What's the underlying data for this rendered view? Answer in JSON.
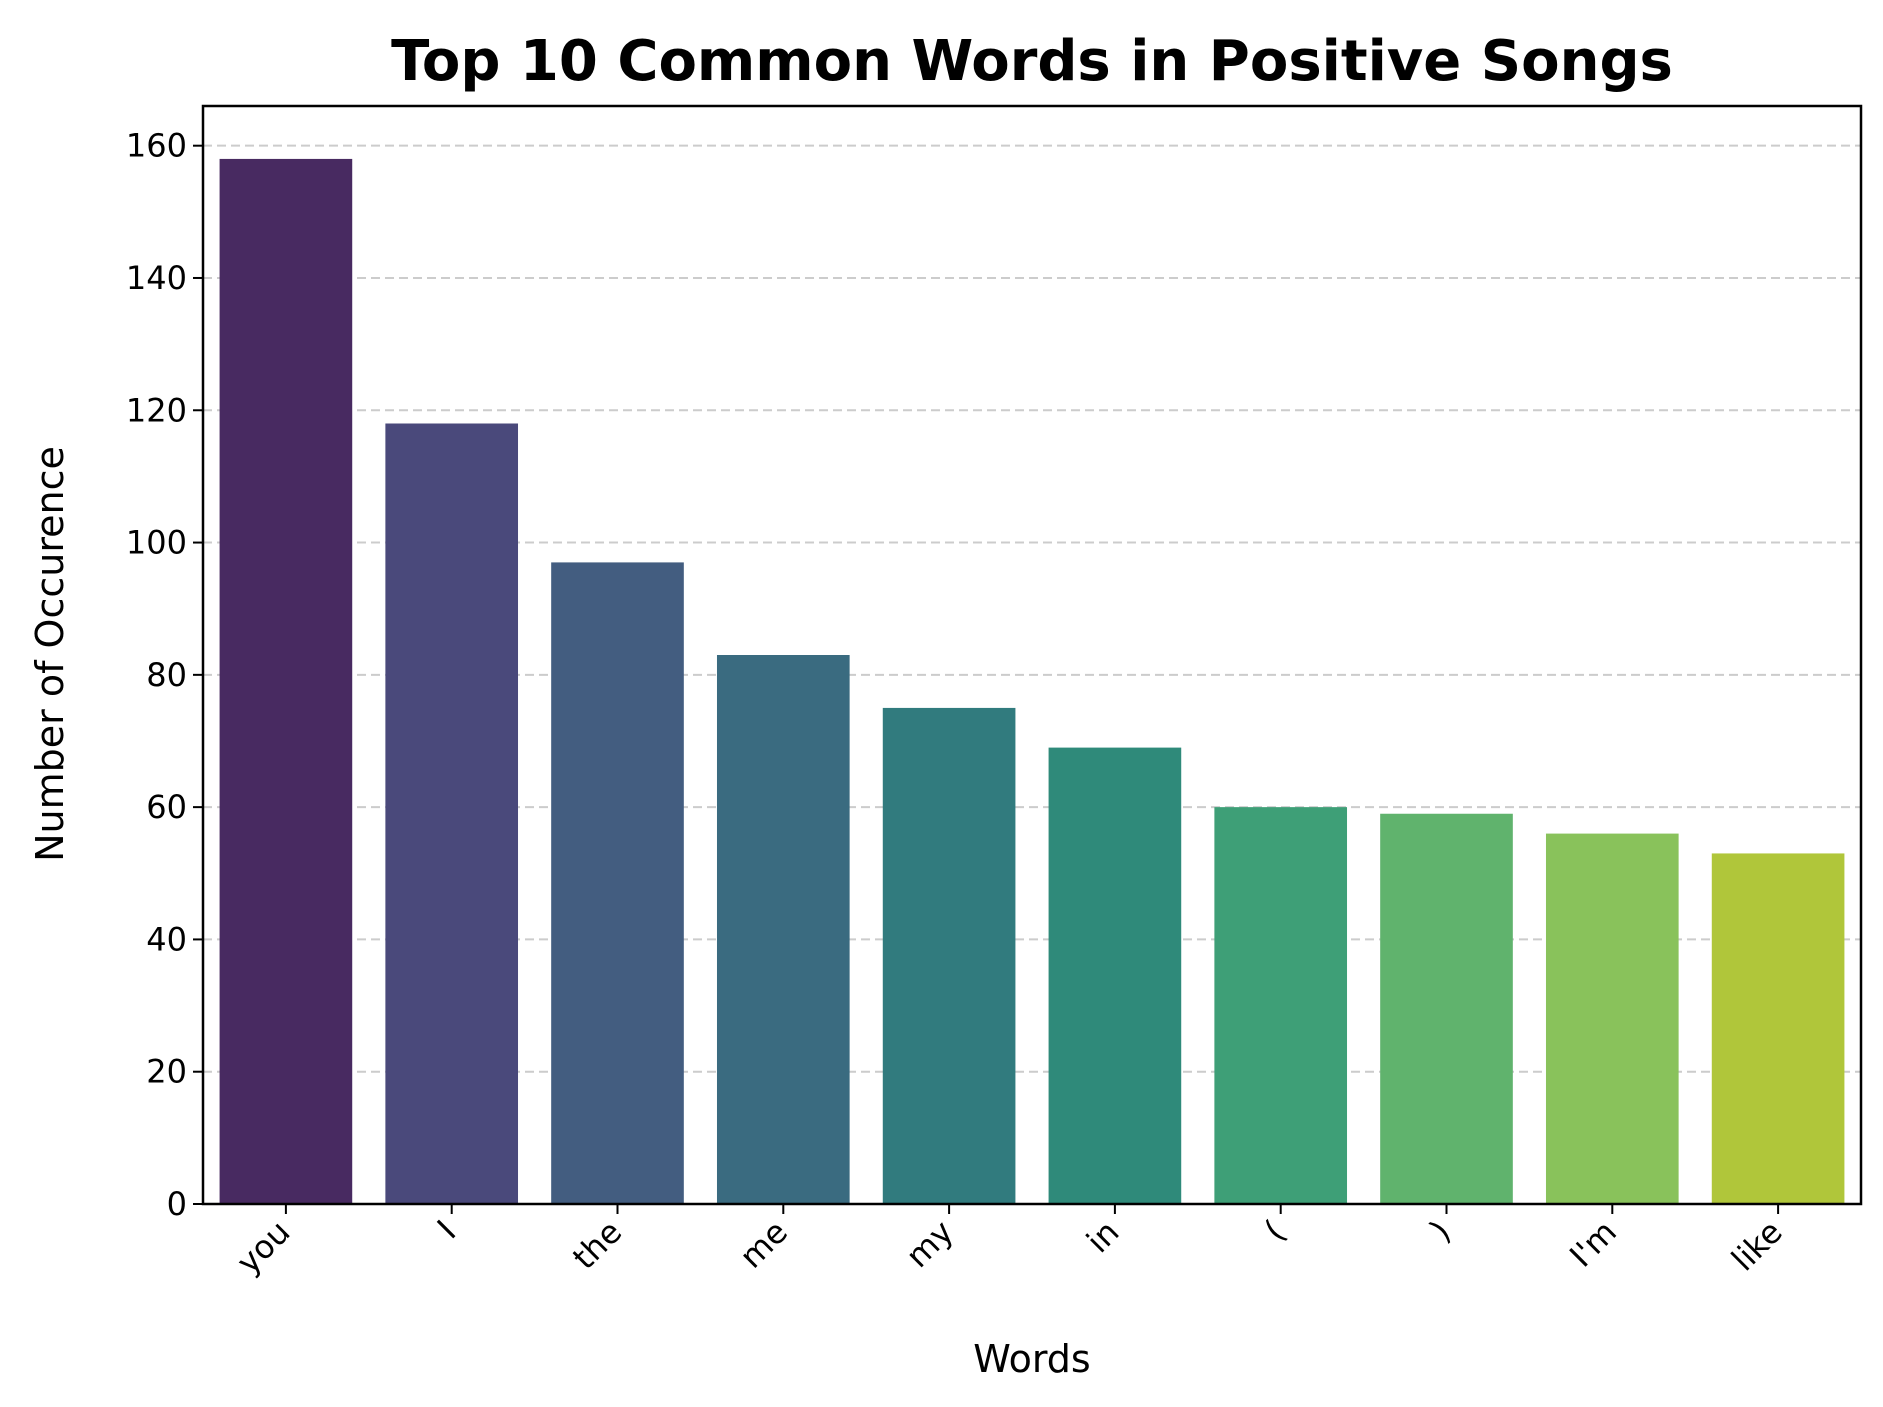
{
  "chart_data": {
    "type": "bar",
    "title": "Top 10 Common Words in Positive Songs",
    "xlabel": "Words",
    "ylabel": "Number of Occurence",
    "categories": [
      "you",
      "I",
      "the",
      "me",
      "my",
      "in",
      "(",
      ")",
      "I'm",
      "like"
    ],
    "values": [
      158,
      118,
      97,
      83,
      75,
      69,
      60,
      59,
      56,
      53
    ],
    "colors": [
      "#482a61",
      "#4a497b",
      "#435d80",
      "#3a6b80",
      "#317b7e",
      "#2f8a7a",
      "#3e9f77",
      "#60b36d",
      "#89c25b",
      "#b0c63a"
    ],
    "yticks": [
      0,
      20,
      40,
      60,
      80,
      100,
      120,
      140,
      160
    ],
    "ylim": [
      0,
      166
    ],
    "grid": "y-dashed",
    "xtick_rotation": -45
  }
}
